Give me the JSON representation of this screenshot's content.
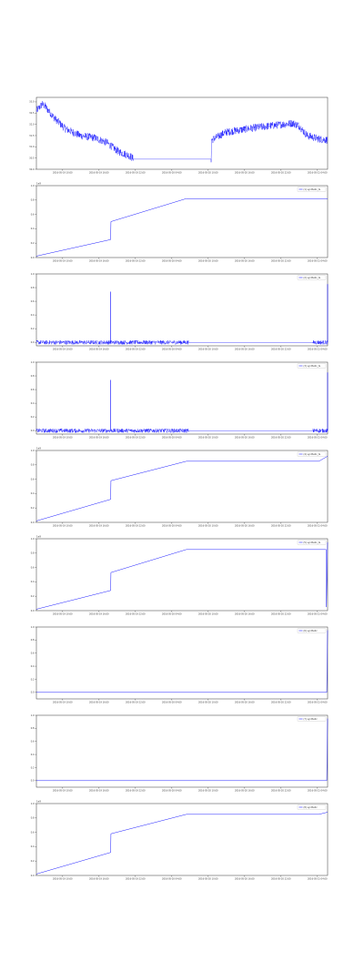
{
  "chart_data": [
    {
      "type": "line",
      "title": "",
      "xlabel": "",
      "ylabel": "",
      "offset_label": "",
      "legend": [],
      "series_color": "#0000ff",
      "line_style": "noisy",
      "ylim": [
        30,
        33.2
      ],
      "yticks": [
        30.0,
        30.5,
        31.0,
        31.5,
        32.0,
        32.5,
        33.0
      ],
      "ytick_labels": [
        "30.0",
        "30.5",
        "31.0",
        "31.5",
        "32.0",
        "32.5",
        "33.0"
      ],
      "xlim": [
        0,
        100
      ],
      "xticks": [
        9,
        21.5,
        34,
        46.5,
        59,
        71.5,
        84,
        96.5
      ],
      "xtick_labels": [
        "2016-05-19 10:00",
        "2016-05-19 16:00",
        "2016-05-19 22:00",
        "2016-05-20 04:00",
        "2016-05-20 10:00",
        "2016-05-20 16:00",
        "2016-05-20 22:00",
        "2016-05-21 04:00"
      ],
      "x": [
        0,
        2,
        3,
        6,
        10,
        15,
        20,
        24,
        28,
        32,
        33,
        33.2,
        60,
        60.2,
        65,
        75,
        88,
        90,
        93,
        97,
        100
      ],
      "y": [
        32.6,
        32.9,
        32.8,
        32.3,
        31.8,
        31.5,
        31.4,
        31.2,
        30.8,
        30.6,
        30.5,
        30.45,
        30.45,
        31.3,
        31.65,
        31.85,
        32.05,
        31.95,
        31.5,
        31.35,
        31.3
      ],
      "noise": 0.17,
      "gap": [
        33.2,
        60
      ]
    },
    {
      "type": "line",
      "title": "",
      "xlabel": "",
      "ylabel": "",
      "offset_label": "1e9",
      "legend": [
        "(1) synthetic_ts"
      ],
      "series_color": "#0000ff",
      "line_style": "smooth",
      "ylim": [
        0,
        1
      ],
      "yticks": [
        0,
        0.2,
        0.4,
        0.6,
        0.8,
        1.0
      ],
      "ytick_labels": [
        "0.0",
        "0.2",
        "0.4",
        "0.6",
        "0.8",
        "1.0"
      ],
      "xlim": [
        0,
        100
      ],
      "xticks": [
        9,
        21.5,
        34,
        46.5,
        59,
        71.5,
        84,
        96.5
      ],
      "xtick_labels": [
        "2016-05-19 10:00",
        "2016-05-19 16:00",
        "2016-05-19 22:00",
        "2016-05-20 04:00",
        "2016-05-20 10:00",
        "2016-05-20 16:00",
        "2016-05-20 22:00",
        "2016-05-21 04:00"
      ],
      "x": [
        0,
        25.5,
        25.6,
        51.5,
        100
      ],
      "y": [
        0.02,
        0.25,
        0.5,
        0.82,
        0.82
      ]
    },
    {
      "type": "line",
      "title": "",
      "xlabel": "",
      "ylabel": "",
      "offset_label": "",
      "legend": [
        "(2) synthetic_ts"
      ],
      "series_color": "#0000ff",
      "line_style": "noisy",
      "ylim": [
        -0.05,
        1.0
      ],
      "yticks": [
        0.0,
        0.2,
        0.4,
        0.6,
        0.8,
        1.0
      ],
      "ytick_labels": [
        "0.0",
        "0.2",
        "0.4",
        "0.6",
        "0.8",
        "1.0"
      ],
      "xlim": [
        0,
        100
      ],
      "xticks": [
        9,
        21.5,
        34,
        46.5,
        59,
        71.5,
        84,
        96.5
      ],
      "xtick_labels": [
        "2016-05-19 10:00",
        "2016-05-19 16:00",
        "2016-05-19 22:00",
        "2016-05-20 04:00",
        "2016-05-20 10:00",
        "2016-05-20 16:00",
        "2016-05-20 22:00",
        "2016-05-21 04:00"
      ],
      "x": [
        0,
        52,
        52.2,
        95,
        95.2,
        100
      ],
      "y": [
        0.0,
        0.0,
        0.0,
        0.0,
        0.0,
        0.0
      ],
      "noise": 0.03,
      "gap": [
        52.2,
        95
      ],
      "spikes": [
        {
          "x": 25.5,
          "y": 0.74
        },
        {
          "x": 100,
          "y": 0.85
        }
      ]
    },
    {
      "type": "line",
      "title": "",
      "xlabel": "",
      "ylabel": "",
      "offset_label": "",
      "legend": [
        "(3) synthetic_ts"
      ],
      "series_color": "#0000ff",
      "line_style": "noisy",
      "ylim": [
        -0.05,
        1.0
      ],
      "yticks": [
        0.0,
        0.2,
        0.4,
        0.6,
        0.8,
        1.0
      ],
      "ytick_labels": [
        "0.0",
        "0.2",
        "0.4",
        "0.6",
        "0.8",
        "1.0"
      ],
      "xlim": [
        0,
        100
      ],
      "xticks": [
        9,
        21.5,
        34,
        46.5,
        59,
        71.5,
        84,
        96.5
      ],
      "xtick_labels": [
        "2016-05-19 10:00",
        "2016-05-19 16:00",
        "2016-05-19 22:00",
        "2016-05-20 04:00",
        "2016-05-20 10:00",
        "2016-05-20 16:00",
        "2016-05-20 22:00",
        "2016-05-21 04:00"
      ],
      "x": [
        0,
        52,
        52.2,
        95,
        95.2,
        100
      ],
      "y": [
        0.0,
        0.0,
        0.0,
        0.0,
        0.0,
        0.0
      ],
      "noise": 0.03,
      "gap": [
        52.2,
        95
      ],
      "spikes": [
        {
          "x": 25.5,
          "y": 0.74
        },
        {
          "x": 100,
          "y": 0.85
        }
      ]
    },
    {
      "type": "line",
      "title": "",
      "xlabel": "",
      "ylabel": "",
      "offset_label": "1e9",
      "legend": [
        "(4) synthetic_ts"
      ],
      "series_color": "#0000ff",
      "line_style": "smooth",
      "ylim": [
        0,
        1
      ],
      "yticks": [
        0,
        0.2,
        0.4,
        0.6,
        0.8,
        1.0
      ],
      "ytick_labels": [
        "0.0",
        "0.2",
        "0.4",
        "0.6",
        "0.8",
        "1.0"
      ],
      "xlim": [
        0,
        100
      ],
      "xticks": [
        9,
        21.5,
        34,
        46.5,
        59,
        71.5,
        84,
        96.5
      ],
      "xtick_labels": [
        "2016-05-19 10:00",
        "2016-05-19 16:00",
        "2016-05-19 22:00",
        "2016-05-20 04:00",
        "2016-05-20 10:00",
        "2016-05-20 16:00",
        "2016-05-20 22:00",
        "2016-05-21 04:00"
      ],
      "x": [
        0,
        25.5,
        25.6,
        51.5,
        97,
        100
      ],
      "y": [
        0.02,
        0.32,
        0.58,
        0.85,
        0.85,
        0.92
      ]
    },
    {
      "type": "line",
      "title": "",
      "xlabel": "",
      "ylabel": "",
      "offset_label": "1e9",
      "legend": [
        "(5) synthetic_ts"
      ],
      "series_color": "#0000ff",
      "line_style": "smooth",
      "ylim": [
        0,
        1
      ],
      "yticks": [
        0,
        0.2,
        0.4,
        0.6,
        0.8,
        1.0
      ],
      "ytick_labels": [
        "0.0",
        "0.2",
        "0.4",
        "0.6",
        "0.8",
        "1.0"
      ],
      "xlim": [
        0,
        100
      ],
      "xticks": [
        9,
        21.5,
        34,
        46.5,
        59,
        71.5,
        84,
        96.5
      ],
      "xtick_labels": [
        "2016-05-19 10:00",
        "2016-05-19 16:00",
        "2016-05-19 22:00",
        "2016-05-20 04:00",
        "2016-05-20 10:00",
        "2016-05-20 16:00",
        "2016-05-20 22:00",
        "2016-05-21 04:00"
      ],
      "x": [
        0,
        25.5,
        25.6,
        51.5,
        99.5,
        99.6,
        100
      ],
      "y": [
        0.02,
        0.28,
        0.53,
        0.85,
        0.85,
        0.05,
        0.95
      ]
    },
    {
      "type": "line",
      "title": "",
      "xlabel": "",
      "ylabel": "",
      "offset_label": "",
      "legend": [
        "(6) synthetic"
      ],
      "series_color": "#0000ff",
      "line_style": "smooth",
      "ylim": [
        -0.1,
        1.0
      ],
      "yticks": [
        0.0,
        0.2,
        0.4,
        0.6,
        0.8,
        1.0
      ],
      "ytick_labels": [
        "0.0",
        "0.2",
        "0.4",
        "0.6",
        "0.8",
        "1.0"
      ],
      "xlim": [
        0,
        100
      ],
      "xticks": [
        9,
        21.5,
        34,
        46.5,
        59,
        71.5,
        84,
        96.5
      ],
      "xtick_labels": [
        "2016-05-19 10:00",
        "2016-05-19 16:00",
        "2016-05-19 22:00",
        "2016-05-20 04:00",
        "2016-05-20 10:00",
        "2016-05-20 16:00",
        "2016-05-20 22:00",
        "2016-05-21 04:00"
      ],
      "x": [
        0,
        99.6,
        99.7,
        100
      ],
      "y": [
        0.0,
        0.0,
        0.0,
        0.95
      ]
    },
    {
      "type": "line",
      "title": "",
      "xlabel": "",
      "ylabel": "",
      "offset_label": "",
      "legend": [
        "(7) synthetic"
      ],
      "series_color": "#0000ff",
      "line_style": "smooth",
      "ylim": [
        -0.1,
        1.0
      ],
      "yticks": [
        0.0,
        0.2,
        0.4,
        0.6,
        0.8,
        1.0
      ],
      "ytick_labels": [
        "0.0",
        "0.2",
        "0.4",
        "0.6",
        "0.8",
        "1.0"
      ],
      "xlim": [
        0,
        100
      ],
      "xticks": [
        9,
        21.5,
        34,
        46.5,
        59,
        71.5,
        84,
        96.5
      ],
      "xtick_labels": [
        "2016-05-19 10:00",
        "2016-05-19 16:00",
        "2016-05-19 22:00",
        "2016-05-20 04:00",
        "2016-05-20 10:00",
        "2016-05-20 16:00",
        "2016-05-20 22:00",
        "2016-05-21 04:00"
      ],
      "x": [
        0,
        99.6,
        99.7,
        100
      ],
      "y": [
        0.0,
        0.0,
        0.0,
        0.95
      ]
    },
    {
      "type": "line",
      "title": "",
      "xlabel": "",
      "ylabel": "",
      "offset_label": "1e9",
      "legend": [
        "(8) synthetic"
      ],
      "series_color": "#0000ff",
      "line_style": "smooth",
      "ylim": [
        0,
        1
      ],
      "yticks": [
        0,
        0.2,
        0.4,
        0.6,
        0.8,
        1.0
      ],
      "ytick_labels": [
        "0.0",
        "0.2",
        "0.4",
        "0.6",
        "0.8",
        "1.0"
      ],
      "xlim": [
        0,
        100
      ],
      "xticks": [
        9,
        21.5,
        34,
        46.5,
        59,
        71.5,
        84,
        96.5
      ],
      "xtick_labels": [
        "2016-05-19 10:00",
        "2016-05-19 16:00",
        "2016-05-19 22:00",
        "2016-05-20 04:00",
        "2016-05-20 10:00",
        "2016-05-20 16:00",
        "2016-05-20 22:00",
        "2016-05-21 04:00"
      ],
      "x": [
        0,
        25.5,
        25.6,
        51.5,
        97,
        100
      ],
      "y": [
        0.02,
        0.32,
        0.58,
        0.85,
        0.85,
        0.88
      ]
    }
  ]
}
